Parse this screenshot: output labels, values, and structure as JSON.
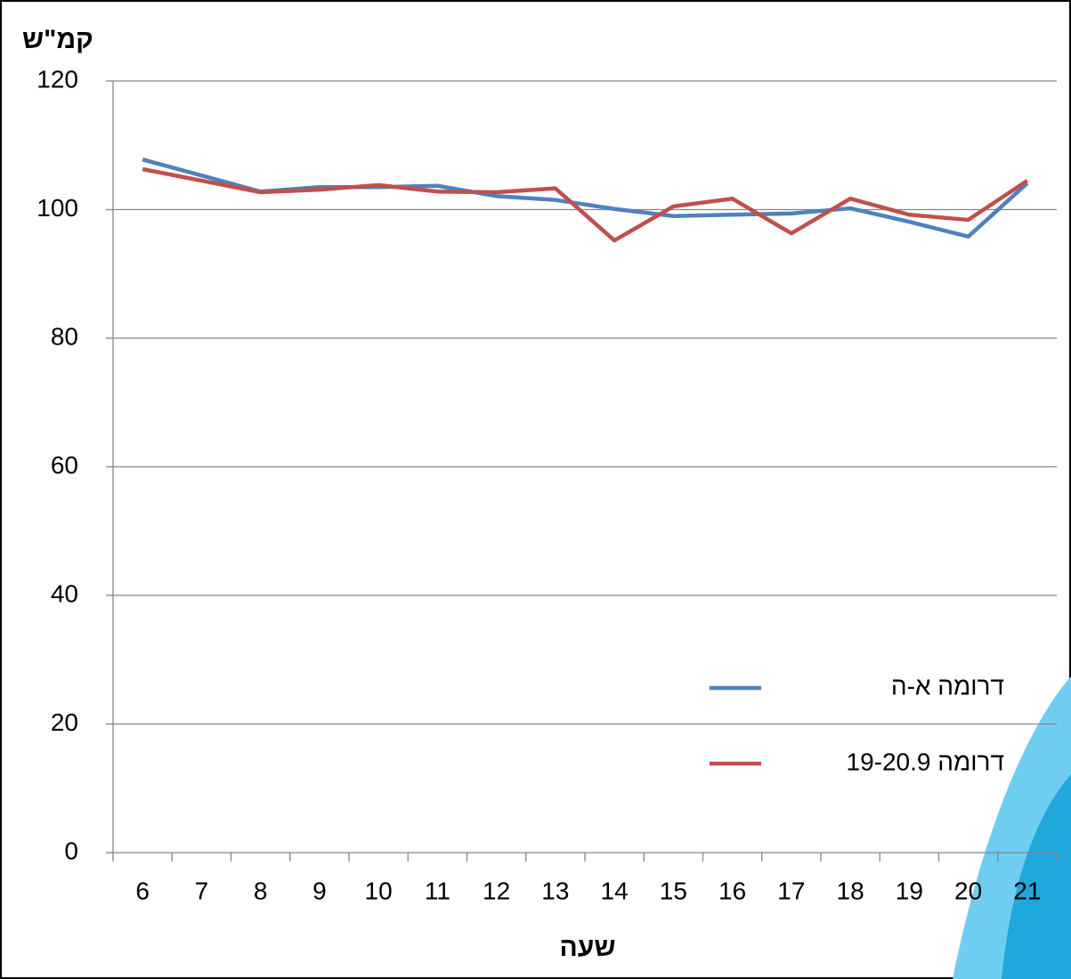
{
  "chart_data": {
    "type": "line",
    "y_label": "קמ\"ש",
    "x_label": "שעה",
    "categories": [
      "6",
      "7",
      "8",
      "9",
      "10",
      "11",
      "12",
      "13",
      "14",
      "15",
      "16",
      "17",
      "18",
      "19",
      "20",
      "21"
    ],
    "series": [
      {
        "name": "דרומה א-ה",
        "color": "#4f81bd",
        "values": [
          107.8,
          105.3,
          102.8,
          103.5,
          103.5,
          103.7,
          102.1,
          101.5,
          100.1,
          99.0,
          99.2,
          99.4,
          100.2,
          98.1,
          95.8,
          104.1
        ]
      },
      {
        "name": "דרומה 19-20.9",
        "color": "#c0504d",
        "values": [
          106.3,
          104.5,
          102.7,
          103.1,
          103.8,
          102.8,
          102.7,
          103.3,
          95.2,
          100.5,
          101.7,
          96.3,
          101.7,
          99.2,
          98.4,
          104.5
        ]
      }
    ],
    "ylim": [
      0,
      120
    ],
    "yticks": [
      0,
      20,
      40,
      60,
      80,
      100,
      120
    ],
    "grid": true
  }
}
